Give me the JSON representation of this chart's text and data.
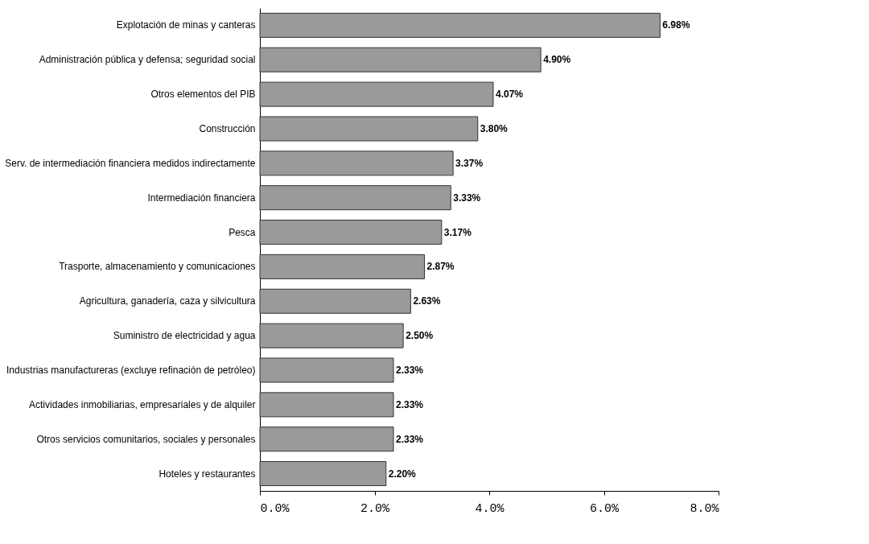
{
  "chart_data": {
    "type": "bar",
    "orientation": "horizontal",
    "categories": [
      "Explotación de minas y canteras",
      "Administración pública y defensa; seguridad social",
      "Otros elementos del PIB",
      "Construcción",
      "Serv. de intermediación financiera medidos indirectamente",
      "Intermediación financiera",
      "Pesca",
      "Trasporte, almacenamiento y comunicaciones",
      "Agricultura, ganadería, caza y silvicultura",
      "Suministro de electricidad y agua",
      "Industrias manufactureras (excluye refinación de petróleo)",
      "Actividades inmobiliarias, empresariales y de alquiler",
      "Otros servicios comunitarios, sociales y personales",
      "Hoteles y restaurantes"
    ],
    "values": [
      6.98,
      4.9,
      4.07,
      3.8,
      3.37,
      3.33,
      3.17,
      2.87,
      2.63,
      2.5,
      2.33,
      2.33,
      2.33,
      2.2
    ],
    "value_labels": [
      "6.98%",
      "4.90%",
      "4.07%",
      "3.80%",
      "3.37%",
      "3.33%",
      "3.17%",
      "2.87%",
      "2.63%",
      "2.50%",
      "2.33%",
      "2.33%",
      "2.33%",
      "2.20%"
    ],
    "color": "#9a9a9a",
    "xlim": [
      0,
      8
    ],
    "xticks": [
      {
        "value": 0,
        "label": "0.0%"
      },
      {
        "value": 2,
        "label": "2.0%"
      },
      {
        "value": 4,
        "label": "4.0%"
      },
      {
        "value": 6,
        "label": "6.0%"
      },
      {
        "value": 8,
        "label": "8.0%"
      }
    ],
    "grid": false
  }
}
